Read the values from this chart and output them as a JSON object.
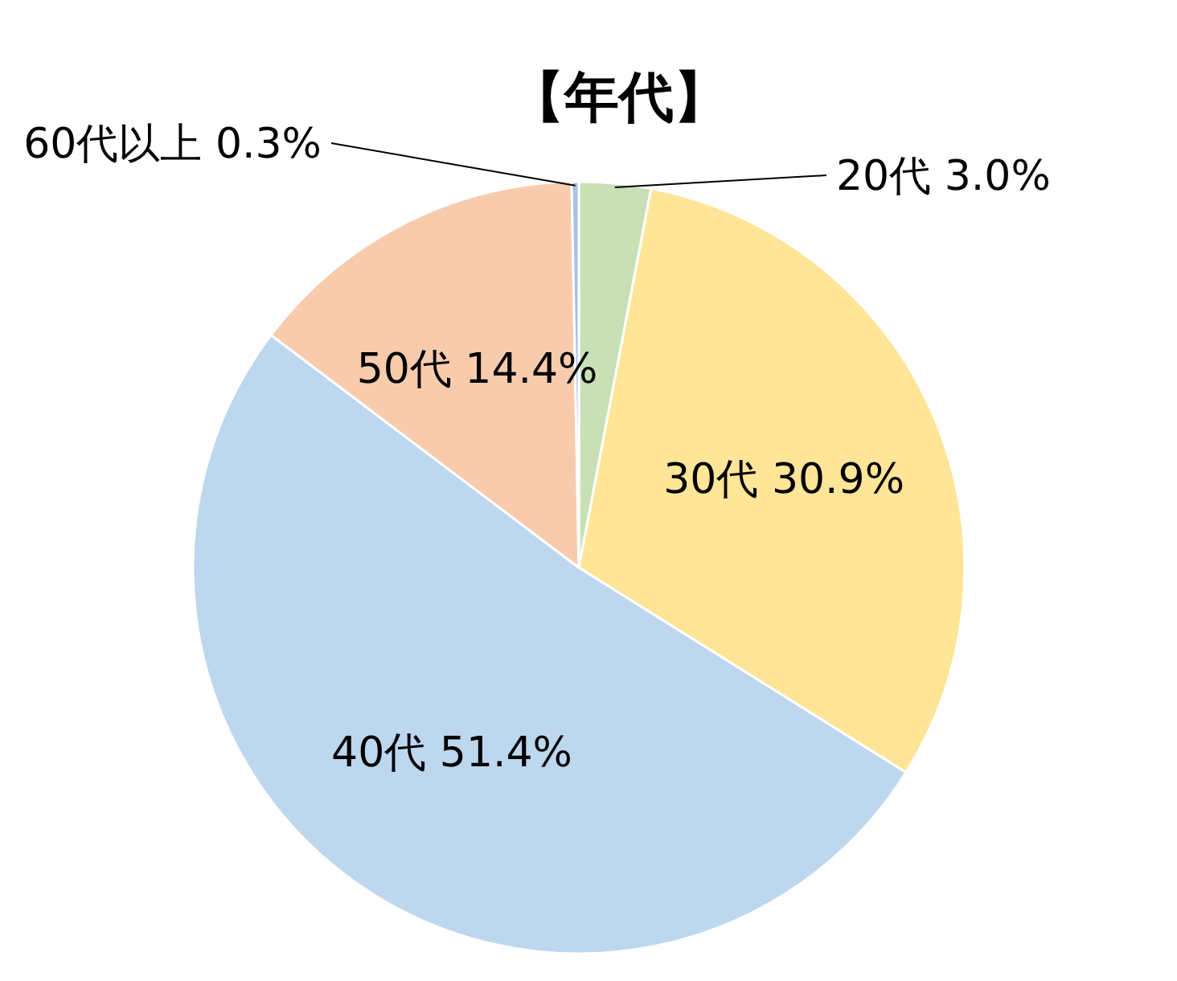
{
  "chart_data": {
    "type": "pie",
    "title": "【年代】",
    "categories": [
      "20代",
      "30代",
      "40代",
      "50代",
      "60代以上"
    ],
    "values": [
      3.0,
      30.9,
      51.4,
      14.4,
      0.3
    ],
    "value_labels": [
      "3.0%",
      "30.9%",
      "51.4%",
      "14.4%",
      "0.3%"
    ],
    "colors": [
      "#c9e0b6",
      "#ffe597",
      "#bdd7ee",
      "#f8cbad",
      "#a9c2e2"
    ]
  }
}
